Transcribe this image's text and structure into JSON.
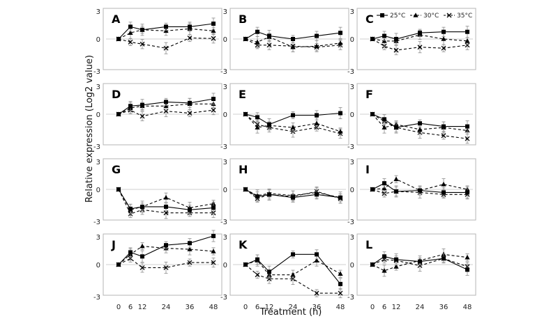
{
  "figure": {
    "ylabel": "Relative expression (Log2 value)",
    "xlabel": "Treatment (h)"
  },
  "legend": {
    "series": [
      {
        "name": "25°C",
        "marker": "square",
        "dash": "solid"
      },
      {
        "name": "30°C",
        "marker": "triangle",
        "dash": "dashed"
      },
      {
        "name": "35°C",
        "marker": "x",
        "dash": "dashed"
      }
    ]
  },
  "chart_data": [
    {
      "type": "line",
      "label": "A",
      "x": [
        0,
        6,
        12,
        24,
        36,
        48
      ],
      "ylim": [
        -3,
        3
      ],
      "yticks": [
        3,
        0,
        -3
      ],
      "series": [
        {
          "name": "25°C",
          "values": [
            0,
            1.2,
            0.9,
            1.2,
            1.2,
            1.5
          ]
        },
        {
          "name": "30°C",
          "values": [
            0,
            0.6,
            0.9,
            0.8,
            1.0,
            0.8
          ]
        },
        {
          "name": "35°C",
          "values": [
            0,
            -0.3,
            -0.5,
            -0.9,
            0.1,
            0.05
          ]
        }
      ]
    },
    {
      "type": "line",
      "label": "B",
      "x": [
        0,
        6,
        12,
        24,
        36,
        48
      ],
      "ylim": [
        -3,
        3
      ],
      "yticks": [
        3,
        0,
        -3
      ],
      "series": [
        {
          "name": "25°C",
          "values": [
            0,
            0.7,
            0.3,
            0.0,
            0.3,
            0.6
          ]
        },
        {
          "name": "30°C",
          "values": [
            0,
            -0.3,
            0.2,
            -0.8,
            -0.7,
            -0.4
          ]
        },
        {
          "name": "35°C",
          "values": [
            0,
            -0.6,
            -0.6,
            -0.7,
            -0.8,
            -0.6
          ]
        }
      ]
    },
    {
      "type": "line",
      "label": "C",
      "x": [
        0,
        6,
        12,
        24,
        36,
        48
      ],
      "ylim": [
        -3,
        3
      ],
      "yticks": [
        3,
        0,
        -3
      ],
      "series": [
        {
          "name": "25°C",
          "values": [
            0,
            0.3,
            0.0,
            0.6,
            0.7,
            0.7
          ]
        },
        {
          "name": "30°C",
          "values": [
            0,
            -0.2,
            -0.2,
            0.4,
            0.0,
            -0.2
          ]
        },
        {
          "name": "35°C",
          "values": [
            0,
            -0.7,
            -1.1,
            -0.8,
            -0.9,
            -0.6
          ]
        }
      ]
    },
    {
      "type": "line",
      "label": "D",
      "x": [
        0,
        6,
        12,
        24,
        36,
        48
      ],
      "ylim": [
        -3,
        3
      ],
      "yticks": [
        3,
        0,
        -3
      ],
      "series": [
        {
          "name": "25°C",
          "values": [
            0,
            0.8,
            0.9,
            1.2,
            1.1,
            1.5
          ]
        },
        {
          "name": "30°C",
          "values": [
            0,
            0.6,
            0.8,
            0.8,
            1.0,
            1.0
          ]
        },
        {
          "name": "35°C",
          "values": [
            0,
            0.4,
            -0.2,
            0.3,
            0.1,
            0.4
          ]
        }
      ]
    },
    {
      "type": "line",
      "label": "E",
      "x": [
        0,
        6,
        12,
        24,
        36,
        48
      ],
      "ylim": [
        -3,
        3
      ],
      "yticks": [
        3,
        0,
        -3
      ],
      "series": [
        {
          "name": "25°C",
          "values": [
            0,
            -0.3,
            -1.0,
            -0.1,
            -0.1,
            0.1
          ]
        },
        {
          "name": "30°C",
          "values": [
            0,
            -1.3,
            -1.1,
            -1.3,
            -0.9,
            -1.7
          ]
        },
        {
          "name": "35°C",
          "values": [
            0,
            -1.0,
            -1.3,
            -1.7,
            -1.3,
            -1.9
          ]
        }
      ]
    },
    {
      "type": "line",
      "label": "F",
      "x": [
        0,
        6,
        12,
        24,
        36,
        48
      ],
      "ylim": [
        -3,
        3
      ],
      "yticks": [
        3,
        0,
        -3
      ],
      "series": [
        {
          "name": "25°C",
          "values": [
            0,
            -0.5,
            -1.3,
            -0.9,
            -1.2,
            -1.2
          ]
        },
        {
          "name": "30°C",
          "values": [
            0,
            -1.3,
            -1.0,
            -1.5,
            -1.3,
            -1.6
          ]
        },
        {
          "name": "35°C",
          "values": [
            0,
            -0.7,
            -1.3,
            -1.8,
            -2.1,
            -2.4
          ]
        }
      ]
    },
    {
      "type": "line",
      "label": "G",
      "x": [
        0,
        6,
        12,
        24,
        36,
        48
      ],
      "ylim": [
        -3,
        3
      ],
      "yticks": [
        3,
        0,
        -3
      ],
      "series": [
        {
          "name": "25°C",
          "values": [
            0,
            -1.9,
            -1.7,
            -1.7,
            -2.0,
            -1.8
          ]
        },
        {
          "name": "30°C",
          "values": [
            0,
            -2.0,
            -1.7,
            -0.8,
            -1.8,
            -1.4
          ]
        },
        {
          "name": "35°C",
          "values": [
            0,
            -2.4,
            -2.0,
            -2.3,
            -2.3,
            -2.3
          ]
        }
      ]
    },
    {
      "type": "line",
      "label": "H",
      "x": [
        0,
        6,
        12,
        24,
        36,
        48
      ],
      "ylim": [
        -3,
        3
      ],
      "yticks": [
        3,
        0,
        -3
      ],
      "series": [
        {
          "name": "25°C",
          "values": [
            0,
            -0.7,
            -0.5,
            -0.8,
            -0.5,
            -0.8
          ]
        },
        {
          "name": "30°C",
          "values": [
            0,
            -0.6,
            -0.4,
            -0.6,
            -0.3,
            -0.8
          ]
        },
        {
          "name": "35°C",
          "values": [
            0,
            -0.9,
            -0.5,
            -0.7,
            -0.2,
            -0.9
          ]
        }
      ]
    },
    {
      "type": "line",
      "label": "I",
      "x": [
        0,
        6,
        12,
        24,
        36,
        48
      ],
      "ylim": [
        -3,
        3
      ],
      "yticks": [
        3,
        0,
        -3
      ],
      "series": [
        {
          "name": "25°C",
          "values": [
            0,
            0.6,
            -0.2,
            -0.1,
            -0.3,
            -0.3
          ]
        },
        {
          "name": "30°C",
          "values": [
            0,
            0.1,
            1.0,
            -0.1,
            0.5,
            0.0
          ]
        },
        {
          "name": "35°C",
          "values": [
            0,
            -0.4,
            -0.2,
            -0.3,
            -0.5,
            -0.5
          ]
        }
      ]
    },
    {
      "type": "line",
      "label": "J",
      "x": [
        0,
        6,
        12,
        24,
        36,
        48
      ],
      "ylim": [
        -3,
        3
      ],
      "yticks": [
        3,
        0,
        -3
      ],
      "series": [
        {
          "name": "25°C",
          "values": [
            0,
            1.2,
            0.8,
            1.9,
            2.1,
            2.8
          ]
        },
        {
          "name": "30°C",
          "values": [
            0,
            1.0,
            1.8,
            1.6,
            1.5,
            1.3
          ]
        },
        {
          "name": "35°C",
          "values": [
            0,
            0.6,
            -0.3,
            -0.3,
            0.2,
            0.2
          ]
        }
      ]
    },
    {
      "type": "line",
      "label": "K",
      "x": [
        0,
        6,
        12,
        24,
        36,
        48
      ],
      "ylim": [
        -3,
        3
      ],
      "yticks": [
        3,
        0,
        -3
      ],
      "series": [
        {
          "name": "25°C",
          "values": [
            0,
            0.5,
            -0.7,
            1.0,
            1.0,
            -1.9
          ]
        },
        {
          "name": "30°C",
          "values": [
            0,
            0.4,
            -1.0,
            -1.0,
            0.4,
            -0.9
          ]
        },
        {
          "name": "35°C",
          "values": [
            0,
            -1.0,
            -1.4,
            -1.4,
            -2.8,
            -2.8
          ]
        }
      ]
    },
    {
      "type": "line",
      "label": "L",
      "x": [
        0,
        6,
        12,
        24,
        36,
        48
      ],
      "ylim": [
        -3,
        3
      ],
      "yticks": [
        3,
        0,
        -3
      ],
      "series": [
        {
          "name": "25°C",
          "values": [
            0,
            0.8,
            0.5,
            0.3,
            0.6,
            -0.5
          ]
        },
        {
          "name": "30°C",
          "values": [
            0,
            -0.6,
            -0.2,
            0.4,
            1.0,
            0.7
          ]
        },
        {
          "name": "35°C",
          "values": [
            0,
            0.5,
            0.4,
            -0.1,
            0.6,
            -0.2
          ]
        }
      ]
    }
  ]
}
